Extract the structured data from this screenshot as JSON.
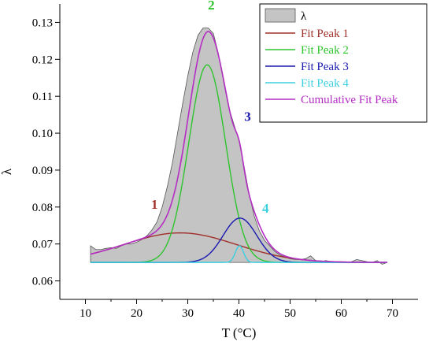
{
  "chart_data": {
    "type": "area",
    "xlabel": "T (°C)",
    "ylabel": "λ",
    "xlim": [
      5,
      75
    ],
    "ylim": [
      0.055,
      0.135
    ],
    "xticks": [
      10,
      20,
      30,
      40,
      50,
      60,
      70
    ],
    "yticks": [
      0.06,
      0.07,
      0.08,
      0.09,
      0.1,
      0.11,
      0.12,
      0.13
    ],
    "ytick_labels": [
      "0.06",
      "0.07",
      "0.08",
      "0.09",
      "0.10",
      "0.11",
      "0.12",
      "0.13"
    ],
    "legend_position": "top-right",
    "data_series": {
      "name": "λ",
      "color": "#c4c4c4",
      "x": [
        11,
        12,
        13,
        14,
        15,
        16,
        17,
        18,
        19,
        20,
        21,
        22,
        23,
        24,
        25,
        26,
        27,
        28,
        29,
        30,
        31,
        32,
        33,
        34,
        35,
        36,
        37,
        38,
        39,
        40,
        41,
        42,
        43,
        44,
        45,
        46,
        47,
        48,
        49,
        50,
        51,
        52,
        53,
        54,
        55,
        56,
        57,
        58,
        59,
        60,
        61,
        62,
        63,
        64,
        65,
        66,
        67,
        68,
        69
      ],
      "y": [
        0.0695,
        0.0685,
        0.0685,
        0.0688,
        0.069,
        0.0688,
        0.0695,
        0.07,
        0.07,
        0.0705,
        0.0712,
        0.0722,
        0.0738,
        0.076,
        0.08,
        0.0855,
        0.092,
        0.1,
        0.108,
        0.1155,
        0.122,
        0.1265,
        0.1285,
        0.1285,
        0.127,
        0.1215,
        0.114,
        0.107,
        0.1025,
        0.098,
        0.091,
        0.0835,
        0.0775,
        0.0735,
        0.071,
        0.0695,
        0.068,
        0.067,
        0.0665,
        0.066,
        0.0658,
        0.0658,
        0.066,
        0.0668,
        0.0655,
        0.0652,
        0.0655,
        0.0652,
        0.065,
        0.0652,
        0.065,
        0.0652,
        0.0658,
        0.0655,
        0.0652,
        0.065,
        0.0655,
        0.0645,
        0.065
      ]
    },
    "baseline": 0.065,
    "fit_peaks": [
      {
        "name": "Fit Peak 1",
        "label": "1",
        "color": "#a0302a",
        "center": 28.5,
        "amplitude": 0.008,
        "sigma": 11
      },
      {
        "name": "Fit Peak 2",
        "label": "2",
        "color": "#2ec42e",
        "center": 33.8,
        "amplitude": 0.0535,
        "sigma": 3.6
      },
      {
        "name": "Fit Peak 3",
        "label": "3",
        "color": "#1a1ab0",
        "center": 40.2,
        "amplitude": 0.012,
        "sigma": 3.3
      },
      {
        "name": "Fit Peak 4",
        "label": "4",
        "color": "#3ad0e0",
        "center": 40.1,
        "amplitude": 0.0045,
        "sigma": 0.8
      }
    ],
    "cumulative": {
      "name": "Cumulative Fit Peak",
      "color": "#b42ec4"
    },
    "peak_label_points": [
      {
        "label": "1",
        "x": 23.5,
        "y": 0.0795
      },
      {
        "label": "2",
        "x": 34.6,
        "y": 0.1335
      },
      {
        "label": "3",
        "x": 41.7,
        "y": 0.1033
      },
      {
        "label": "4",
        "x": 45.2,
        "y": 0.0785
      }
    ]
  }
}
